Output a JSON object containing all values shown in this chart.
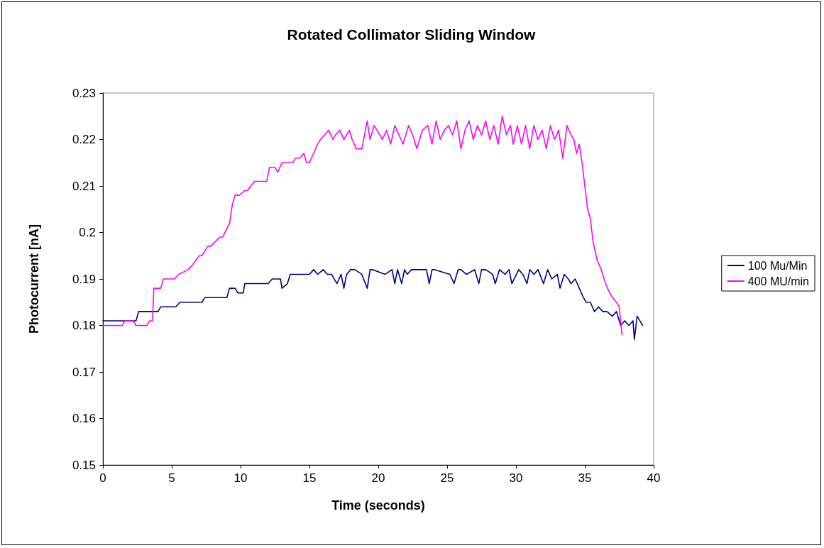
{
  "chart_data": {
    "type": "line",
    "title": "Rotated Collimator Sliding Window",
    "xlabel": "Time (seconds)",
    "ylabel": "Photocurrent [nA]",
    "xlim": [
      0,
      40
    ],
    "xticks": [
      0,
      5,
      10,
      15,
      20,
      25,
      30,
      35,
      40
    ],
    "ylim": [
      0.15,
      0.23
    ],
    "yticks": [
      0.15,
      0.16,
      0.17,
      0.18,
      0.19,
      0.2,
      0.21,
      0.22,
      0.23
    ],
    "grid": false,
    "legend": "right",
    "marker": "none",
    "line_style": "solid",
    "series": [
      {
        "name": "100 Mu/Min",
        "color": "#000080",
        "x": [
          0,
          2.4,
          2.6,
          4.0,
          4.2,
          5.3,
          5.6,
          7.2,
          7.4,
          9.0,
          9.2,
          9.6,
          9.8,
          10.2,
          10.3,
          12.0,
          12.3,
          12.9,
          13.0,
          13.4,
          13.6,
          15.0,
          15.3,
          15.6,
          16.0,
          16.3,
          16.6,
          17.0,
          17.3,
          17.5,
          17.7,
          18.0,
          18.3,
          18.8,
          19.2,
          19.4,
          19.6,
          20.5,
          21.0,
          21.2,
          21.4,
          21.7,
          21.9,
          22.1,
          22.4,
          23.5,
          23.7,
          23.9,
          24.1,
          25.2,
          25.5,
          25.8,
          26.0,
          26.4,
          27.0,
          27.3,
          27.5,
          27.8,
          28.3,
          28.5,
          28.8,
          29.2,
          29.5,
          29.7,
          30.2,
          30.5,
          30.8,
          31.0,
          31.3,
          31.6,
          32.0,
          32.3,
          32.6,
          33.0,
          33.2,
          33.5,
          33.8,
          34.0,
          34.3,
          34.6,
          34.9,
          35.1,
          35.4,
          35.7,
          36.0,
          36.3,
          36.6,
          37.0,
          37.3,
          37.6,
          37.9,
          38.2,
          38.5,
          38.6,
          38.8,
          39.0,
          39.2
        ],
        "values": [
          0.181,
          0.181,
          0.183,
          0.183,
          0.184,
          0.184,
          0.185,
          0.185,
          0.186,
          0.186,
          0.188,
          0.188,
          0.187,
          0.187,
          0.189,
          0.189,
          0.19,
          0.19,
          0.188,
          0.189,
          0.191,
          0.191,
          0.192,
          0.191,
          0.192,
          0.191,
          0.191,
          0.189,
          0.191,
          0.188,
          0.191,
          0.192,
          0.192,
          0.191,
          0.188,
          0.192,
          0.192,
          0.191,
          0.192,
          0.189,
          0.192,
          0.189,
          0.192,
          0.191,
          0.192,
          0.192,
          0.189,
          0.192,
          0.192,
          0.191,
          0.189,
          0.192,
          0.192,
          0.191,
          0.192,
          0.189,
          0.192,
          0.192,
          0.191,
          0.189,
          0.192,
          0.191,
          0.192,
          0.189,
          0.192,
          0.191,
          0.189,
          0.192,
          0.191,
          0.192,
          0.189,
          0.192,
          0.19,
          0.191,
          0.188,
          0.191,
          0.19,
          0.189,
          0.19,
          0.188,
          0.186,
          0.185,
          0.185,
          0.183,
          0.184,
          0.183,
          0.183,
          0.182,
          0.183,
          0.18,
          0.181,
          0.18,
          0.181,
          0.177,
          0.182,
          0.181,
          0.18
        ]
      },
      {
        "name": "400 MU/min",
        "color": "#ff00ff",
        "x": [
          0,
          1.4,
          1.6,
          2.2,
          2.4,
          3.2,
          3.4,
          3.6,
          3.7,
          4.2,
          4.4,
          5.2,
          5.5,
          6.2,
          6.5,
          7.0,
          7.2,
          7.6,
          7.8,
          8.5,
          8.7,
          9.2,
          9.4,
          9.6,
          9.9,
          10.3,
          10.5,
          11.0,
          11.9,
          12.1,
          12.5,
          12.7,
          13.0,
          13.8,
          14.0,
          14.3,
          14.6,
          14.8,
          15.0,
          15.6,
          15.8,
          16.1,
          16.4,
          16.7,
          16.9,
          17.2,
          17.5,
          17.9,
          18.1,
          18.4,
          18.8,
          19.2,
          19.4,
          19.7,
          19.9,
          20.3,
          20.6,
          20.9,
          21.2,
          21.5,
          21.8,
          22.2,
          22.5,
          22.8,
          23.2,
          23.6,
          23.9,
          24.2,
          24.5,
          24.8,
          25.1,
          25.4,
          25.7,
          26.0,
          26.3,
          26.6,
          26.9,
          27.2,
          27.5,
          27.8,
          28.1,
          28.4,
          28.7,
          29.0,
          29.3,
          29.6,
          29.8,
          30.1,
          30.4,
          30.7,
          31.0,
          31.3,
          31.6,
          31.9,
          32.2,
          32.5,
          32.8,
          33.1,
          33.4,
          33.7,
          34.0,
          34.2,
          34.4,
          34.6,
          34.8,
          35.0,
          35.2,
          35.4,
          35.6,
          35.9,
          36.2,
          36.5,
          36.8,
          37.0,
          37.3,
          37.5,
          37.7
        ],
        "values": [
          0.18,
          0.18,
          0.181,
          0.181,
          0.18,
          0.18,
          0.181,
          0.181,
          0.188,
          0.188,
          0.19,
          0.19,
          0.191,
          0.192,
          0.193,
          0.195,
          0.195,
          0.197,
          0.197,
          0.199,
          0.199,
          0.202,
          0.206,
          0.208,
          0.208,
          0.209,
          0.209,
          0.211,
          0.211,
          0.214,
          0.214,
          0.213,
          0.215,
          0.215,
          0.216,
          0.216,
          0.217,
          0.215,
          0.215,
          0.219,
          0.22,
          0.221,
          0.222,
          0.22,
          0.221,
          0.222,
          0.22,
          0.222,
          0.22,
          0.218,
          0.218,
          0.224,
          0.22,
          0.223,
          0.222,
          0.22,
          0.222,
          0.219,
          0.223,
          0.221,
          0.219,
          0.223,
          0.221,
          0.218,
          0.222,
          0.223,
          0.219,
          0.224,
          0.22,
          0.222,
          0.223,
          0.221,
          0.224,
          0.218,
          0.222,
          0.224,
          0.22,
          0.223,
          0.221,
          0.224,
          0.22,
          0.223,
          0.219,
          0.225,
          0.221,
          0.223,
          0.219,
          0.223,
          0.219,
          0.223,
          0.218,
          0.223,
          0.22,
          0.222,
          0.218,
          0.223,
          0.22,
          0.222,
          0.216,
          0.223,
          0.221,
          0.22,
          0.217,
          0.219,
          0.215,
          0.21,
          0.205,
          0.203,
          0.198,
          0.194,
          0.192,
          0.189,
          0.187,
          0.186,
          0.185,
          0.184,
          0.178
        ]
      }
    ]
  }
}
